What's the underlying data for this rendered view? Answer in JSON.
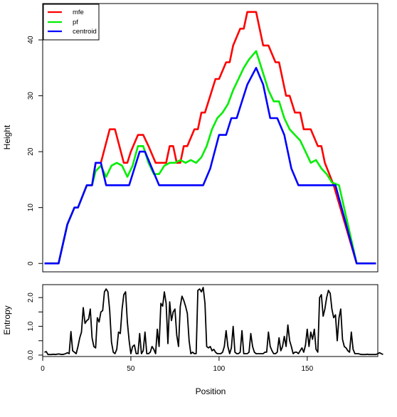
{
  "footer_text": "",
  "chart_data": [
    {
      "type": "line",
      "ylabel": "Height",
      "xlim": [
        0,
        190
      ],
      "ylim": [
        -1.5,
        46.5
      ],
      "yticks": [
        0,
        10,
        20,
        30,
        40
      ],
      "grid": false,
      "legend_position": "top-left",
      "series": [
        {
          "name": "mfe",
          "color": "#ff0000",
          "x": [
            1,
            9,
            14,
            18,
            20,
            25,
            28,
            30,
            33,
            38,
            41,
            46,
            48,
            50,
            54,
            57,
            60,
            64,
            67,
            70,
            72,
            74,
            76,
            78,
            80,
            82,
            86,
            88,
            90,
            92,
            95,
            98,
            100,
            104,
            106,
            108,
            112,
            114,
            116,
            121,
            125,
            128,
            132,
            134,
            138,
            140,
            143,
            146,
            148,
            150,
            152,
            156,
            158,
            160,
            165,
            178,
            181,
            189
          ],
          "y": [
            0,
            0,
            7,
            10,
            10,
            14,
            14,
            18,
            18,
            24,
            24,
            18,
            18,
            20,
            23,
            23,
            21,
            18,
            18,
            18,
            21,
            21,
            18,
            18,
            21,
            21,
            24,
            24,
            27,
            27,
            30,
            33,
            33,
            36,
            36,
            39,
            42,
            42,
            45,
            45,
            39,
            39,
            36,
            36,
            30,
            30,
            27,
            27,
            24,
            24,
            24,
            21,
            21,
            18,
            14,
            0,
            0,
            0
          ]
        },
        {
          "name": "pf",
          "color": "#00ee00",
          "x": [
            1,
            9,
            14,
            18,
            20,
            25,
            28,
            30,
            33,
            36,
            39,
            42,
            45,
            48,
            51,
            54,
            57,
            60,
            63,
            66,
            69,
            72,
            75,
            78,
            81,
            84,
            87,
            90,
            93,
            96,
            99,
            102,
            105,
            108,
            111,
            114,
            117,
            121,
            125,
            128,
            131,
            134,
            137,
            140,
            143,
            146,
            149,
            152,
            155,
            158,
            161,
            164,
            168,
            178,
            181,
            189
          ],
          "y": [
            0,
            0,
            7,
            10,
            10,
            14,
            14,
            16.5,
            17.5,
            15.5,
            17.5,
            18,
            17.5,
            15.5,
            17.5,
            21,
            21,
            18,
            16,
            16,
            17.5,
            18,
            18,
            18.5,
            18,
            18.5,
            18,
            19,
            21,
            24,
            26,
            27,
            28.5,
            31,
            33,
            35,
            36.5,
            38,
            34,
            31,
            29,
            29,
            26,
            24,
            23,
            22,
            20,
            18,
            18.5,
            17,
            16,
            14.5,
            14,
            0,
            0,
            0
          ]
        },
        {
          "name": "centroid",
          "color": "#0000ff",
          "x": [
            1,
            9,
            14,
            18,
            20,
            25,
            28,
            30,
            33,
            36,
            49,
            55,
            58,
            66,
            91,
            95,
            100,
            104,
            107,
            110,
            113,
            116,
            121,
            125,
            129,
            133,
            137,
            141,
            145,
            166,
            178,
            181,
            189
          ],
          "y": [
            0,
            0,
            7,
            10,
            10,
            14,
            14,
            18,
            18,
            14,
            14,
            20,
            20,
            14,
            14,
            17,
            23,
            23,
            26,
            26,
            29,
            32,
            35,
            32,
            26,
            26,
            23,
            17,
            14,
            14,
            0,
            0,
            0
          ]
        }
      ]
    },
    {
      "type": "line",
      "xlabel": "Position",
      "ylabel": "Entropy",
      "xlim": [
        0,
        190
      ],
      "ylim": [
        -0.05,
        2.45
      ],
      "xticks": [
        0,
        50,
        100,
        150
      ],
      "yticks": [
        0.0,
        0.5,
        1.0,
        1.5,
        2.0
      ],
      "ytick_labels": [
        "0.0",
        "",
        "1.0",
        "",
        "2.0"
      ],
      "grid": false,
      "series": [
        {
          "color": "#000000",
          "values": [
            0.1,
            0.12,
            0.02,
            0.02,
            0.02,
            0.03,
            0.02,
            0.03,
            0.04,
            0.03,
            0.02,
            0.03,
            0.05,
            0.08,
            0.05,
            0.82,
            0.15,
            0.1,
            0.05,
            0.3,
            0.6,
            0.8,
            1.65,
            1.1,
            1.2,
            1.25,
            1.6,
            0.6,
            0.3,
            0.25,
            1.3,
            1.15,
            1.5,
            1.55,
            2.2,
            2.3,
            2.2,
            1.55,
            0.45,
            0.1,
            0.05,
            0.2,
            0.8,
            0.75,
            1.6,
            2.1,
            2.2,
            1.15,
            0.5,
            0.05,
            0.3,
            0.35,
            0.05,
            0.05,
            0.75,
            0.05,
            0.15,
            0.8,
            0.05,
            0.05,
            0.1,
            0.3,
            0.2,
            0.05,
            0.9,
            0.3,
            1.8,
            1.7,
            2.2,
            1.8,
            0.4,
            1.85,
            1.2,
            1.5,
            1.6,
            0.7,
            0.3,
            1.7,
            2.05,
            1.9,
            1.7,
            1.45,
            0.5,
            0.05,
            0.1,
            0.05,
            0.05,
            2.25,
            2.3,
            2.2,
            2.35,
            1.8,
            0.3,
            0.25,
            0.3,
            0.15,
            0.2,
            0.1,
            0.05,
            0.05,
            0.05,
            0.1,
            0.3,
            0.85,
            0.3,
            0.05,
            0.25,
            1.0,
            0.1,
            0.05,
            0.05,
            0.1,
            0.85,
            0.05,
            0.05,
            0.05,
            0.1,
            0.75,
            0.3,
            0.1,
            0.05,
            0.05,
            0.05,
            0.05,
            0.05,
            0.1,
            0.1,
            0.8,
            0.3,
            0.15,
            0.05,
            0.05,
            0.1,
            0.6,
            0.15,
            0.3,
            0.65,
            0.3,
            1.05,
            0.5,
            0.3,
            0.05,
            0.1,
            0.1,
            0.05,
            0.15,
            0.25,
            0.1,
            0.35,
            0.9,
            0.3,
            0.8,
            0.55,
            0.9,
            0.2,
            0.1,
            2.0,
            2.1,
            1.35,
            1.6,
            2.0,
            2.25,
            2.15,
            1.6,
            1.3,
            1.4,
            0.5,
            1.3,
            1.6,
            0.55,
            0.3,
            0.25,
            0.15,
            0.1,
            0.8,
            0.2,
            0.05,
            0.05,
            0.05,
            0.03,
            0.02,
            0.02,
            0.02,
            0.03,
            0.02,
            0.02,
            0.02,
            0.02,
            0.02,
            0.05,
            0.08,
            0.05,
            0.02
          ]
        }
      ]
    }
  ]
}
